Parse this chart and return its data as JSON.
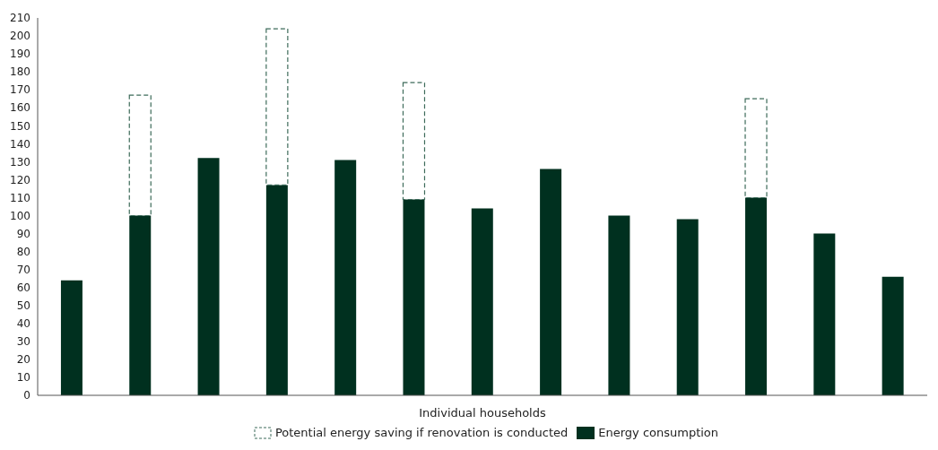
{
  "chart_data": {
    "type": "bar",
    "stacked": true,
    "xlabel": "Individual households",
    "categories": [
      null,
      null,
      null,
      null,
      null,
      null,
      null,
      null,
      null,
      null,
      null,
      null,
      null
    ],
    "series": [
      {
        "name": "Energy consumption",
        "color": "#00301f",
        "values": [
          64,
          100,
          132,
          117,
          131,
          109,
          104,
          126,
          100,
          98,
          110,
          90,
          66
        ]
      },
      {
        "name": "Potential energy saving if renovation is conducted",
        "color": "#3d6b5a",
        "line_style": "dashed",
        "values": [
          null,
          67,
          null,
          87,
          null,
          65,
          null,
          null,
          null,
          null,
          55,
          null,
          null
        ]
      }
    ],
    "ylim": [
      0,
      210
    ],
    "yticks": [
      0,
      10,
      20,
      30,
      40,
      50,
      60,
      70,
      80,
      90,
      100,
      110,
      120,
      130,
      140,
      150,
      160,
      170,
      180,
      190,
      200,
      210
    ],
    "grid": false,
    "legend": "bottom"
  }
}
